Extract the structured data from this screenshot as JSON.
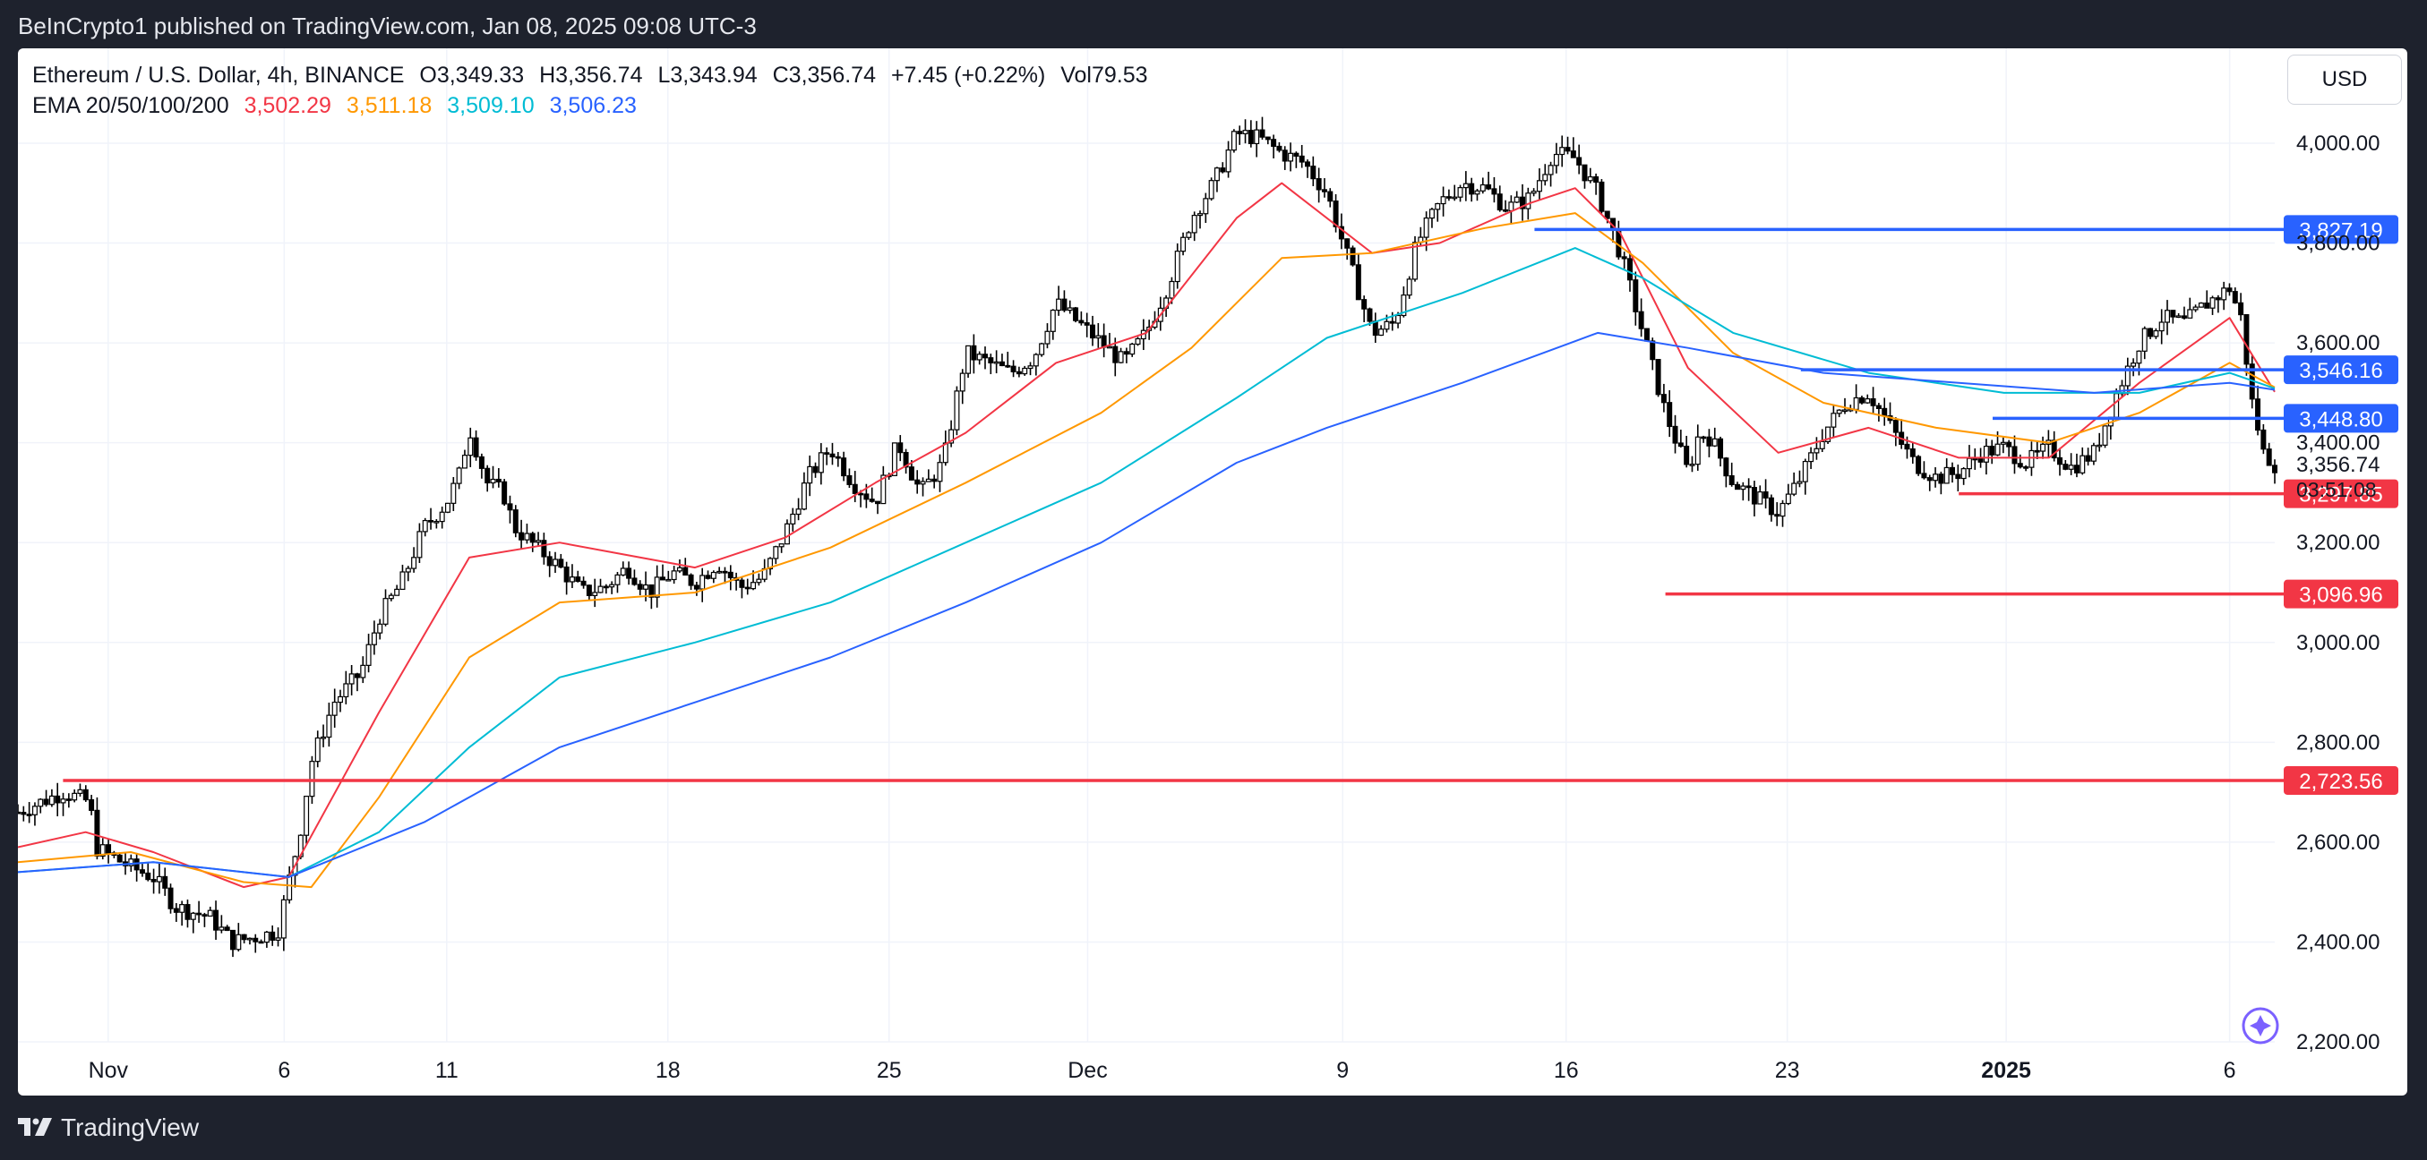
{
  "header": {
    "published_by": "BeInCrypto1 published on TradingView.com, Jan 08, 2025 09:08 UTC-3"
  },
  "legend": {
    "symbol": "Ethereum / U.S. Dollar, 4h, BINANCE",
    "open": "O3,349.33",
    "high": "H3,356.74",
    "low": "L3,343.94",
    "close": "C3,356.74",
    "change": "+7.45 (+0.22%)",
    "volume": "Vol79.53",
    "ema_label": "EMA 20/50/100/200",
    "ema_values": [
      {
        "value": "3,502.29",
        "color": "#f23645"
      },
      {
        "value": "3,511.18",
        "color": "#ff9800"
      },
      {
        "value": "3,509.10",
        "color": "#00bcd4"
      },
      {
        "value": "3,506.23",
        "color": "#2962ff"
      }
    ]
  },
  "currency_button": "USD",
  "footer": {
    "brand": "TradingView"
  },
  "chart_data": {
    "type": "candlestick",
    "symbol": "ETHUSD",
    "interval": "4h",
    "ylim": [
      2200,
      4190
    ],
    "y_ticks": [
      "2,200.00",
      "2,400.00",
      "2,600.00",
      "2,800.00",
      "3,000.00",
      "3,200.00",
      "3,400.00",
      "3,600.00",
      "3,800.00",
      "4,000.00"
    ],
    "x_ticks": [
      {
        "label": "Nov",
        "x": 0.04
      },
      {
        "label": "6",
        "x": 0.118
      },
      {
        "label": "11",
        "x": 0.19
      },
      {
        "label": "18",
        "x": 0.288
      },
      {
        "label": "25",
        "x": 0.386
      },
      {
        "label": "Dec",
        "x": 0.474
      },
      {
        "label": "9",
        "x": 0.587
      },
      {
        "label": "16",
        "x": 0.686
      },
      {
        "label": "23",
        "x": 0.784
      },
      {
        "label": "2025",
        "x": 0.881,
        "bold": true
      },
      {
        "label": "6",
        "x": 0.98
      }
    ],
    "price_path": [
      [
        0.0,
        2660
      ],
      [
        0.02,
        2700
      ],
      [
        0.032,
        2680
      ],
      [
        0.034,
        2590
      ],
      [
        0.05,
        2550
      ],
      [
        0.06,
        2530
      ],
      [
        0.07,
        2470
      ],
      [
        0.085,
        2450
      ],
      [
        0.095,
        2400
      ],
      [
        0.105,
        2410
      ],
      [
        0.115,
        2420
      ],
      [
        0.125,
        2620
      ],
      [
        0.13,
        2760
      ],
      [
        0.14,
        2880
      ],
      [
        0.152,
        2940
      ],
      [
        0.16,
        3050
      ],
      [
        0.17,
        3120
      ],
      [
        0.18,
        3230
      ],
      [
        0.19,
        3280
      ],
      [
        0.196,
        3340
      ],
      [
        0.2,
        3430
      ],
      [
        0.208,
        3320
      ],
      [
        0.215,
        3300
      ],
      [
        0.22,
        3230
      ],
      [
        0.23,
        3190
      ],
      [
        0.24,
        3150
      ],
      [
        0.25,
        3100
      ],
      [
        0.26,
        3110
      ],
      [
        0.27,
        3150
      ],
      [
        0.28,
        3100
      ],
      [
        0.29,
        3140
      ],
      [
        0.3,
        3120
      ],
      [
        0.31,
        3160
      ],
      [
        0.32,
        3110
      ],
      [
        0.33,
        3130
      ],
      [
        0.34,
        3220
      ],
      [
        0.35,
        3330
      ],
      [
        0.36,
        3390
      ],
      [
        0.37,
        3320
      ],
      [
        0.38,
        3280
      ],
      [
        0.39,
        3400
      ],
      [
        0.4,
        3300
      ],
      [
        0.41,
        3360
      ],
      [
        0.42,
        3580
      ],
      [
        0.43,
        3560
      ],
      [
        0.44,
        3540
      ],
      [
        0.45,
        3570
      ],
      [
        0.46,
        3680
      ],
      [
        0.47,
        3640
      ],
      [
        0.48,
        3600
      ],
      [
        0.49,
        3560
      ],
      [
        0.5,
        3620
      ],
      [
        0.51,
        3720
      ],
      [
        0.52,
        3850
      ],
      [
        0.53,
        3920
      ],
      [
        0.54,
        4020
      ],
      [
        0.55,
        4010
      ],
      [
        0.56,
        3980
      ],
      [
        0.57,
        3960
      ],
      [
        0.58,
        3900
      ],
      [
        0.59,
        3760
      ],
      [
        0.6,
        3620
      ],
      [
        0.61,
        3640
      ],
      [
        0.62,
        3800
      ],
      [
        0.63,
        3880
      ],
      [
        0.64,
        3920
      ],
      [
        0.65,
        3910
      ],
      [
        0.66,
        3870
      ],
      [
        0.67,
        3890
      ],
      [
        0.68,
        3980
      ],
      [
        0.69,
        3970
      ],
      [
        0.7,
        3900
      ],
      [
        0.71,
        3780
      ],
      [
        0.72,
        3620
      ],
      [
        0.73,
        3460
      ],
      [
        0.74,
        3340
      ],
      [
        0.745,
        3420
      ],
      [
        0.75,
        3410
      ],
      [
        0.76,
        3320
      ],
      [
        0.77,
        3290
      ],
      [
        0.78,
        3260
      ],
      [
        0.79,
        3330
      ],
      [
        0.8,
        3420
      ],
      [
        0.81,
        3480
      ],
      [
        0.82,
        3500
      ],
      [
        0.83,
        3430
      ],
      [
        0.84,
        3360
      ],
      [
        0.85,
        3330
      ],
      [
        0.86,
        3340
      ],
      [
        0.87,
        3380
      ],
      [
        0.88,
        3390
      ],
      [
        0.89,
        3360
      ],
      [
        0.9,
        3390
      ],
      [
        0.91,
        3350
      ],
      [
        0.92,
        3380
      ],
      [
        0.93,
        3500
      ],
      [
        0.94,
        3600
      ],
      [
        0.95,
        3650
      ],
      [
        0.96,
        3640
      ],
      [
        0.97,
        3680
      ],
      [
        0.98,
        3710
      ],
      [
        0.985,
        3650
      ],
      [
        0.99,
        3480
      ],
      [
        0.995,
        3380
      ],
      [
        1.0,
        3357
      ]
    ],
    "emas": [
      {
        "name": "EMA 20",
        "color": "#f23645",
        "value": 3502.29,
        "points": [
          [
            0,
            2590
          ],
          [
            0.03,
            2620
          ],
          [
            0.06,
            2580
          ],
          [
            0.1,
            2510
          ],
          [
            0.12,
            2530
          ],
          [
            0.16,
            2860
          ],
          [
            0.2,
            3170
          ],
          [
            0.24,
            3200
          ],
          [
            0.3,
            3150
          ],
          [
            0.34,
            3210
          ],
          [
            0.38,
            3320
          ],
          [
            0.42,
            3420
          ],
          [
            0.46,
            3560
          ],
          [
            0.5,
            3620
          ],
          [
            0.54,
            3850
          ],
          [
            0.56,
            3920
          ],
          [
            0.6,
            3780
          ],
          [
            0.63,
            3800
          ],
          [
            0.67,
            3880
          ],
          [
            0.69,
            3910
          ],
          [
            0.71,
            3820
          ],
          [
            0.74,
            3550
          ],
          [
            0.78,
            3380
          ],
          [
            0.82,
            3430
          ],
          [
            0.86,
            3370
          ],
          [
            0.9,
            3370
          ],
          [
            0.94,
            3520
          ],
          [
            0.98,
            3650
          ],
          [
            1.0,
            3502
          ]
        ]
      },
      {
        "name": "EMA 50",
        "color": "#ff9800",
        "value": 3511.18,
        "points": [
          [
            0,
            2560
          ],
          [
            0.05,
            2580
          ],
          [
            0.1,
            2520
          ],
          [
            0.13,
            2510
          ],
          [
            0.16,
            2690
          ],
          [
            0.2,
            2970
          ],
          [
            0.24,
            3080
          ],
          [
            0.3,
            3100
          ],
          [
            0.36,
            3190
          ],
          [
            0.42,
            3320
          ],
          [
            0.48,
            3460
          ],
          [
            0.52,
            3590
          ],
          [
            0.56,
            3770
          ],
          [
            0.6,
            3780
          ],
          [
            0.65,
            3830
          ],
          [
            0.69,
            3860
          ],
          [
            0.72,
            3760
          ],
          [
            0.76,
            3580
          ],
          [
            0.8,
            3480
          ],
          [
            0.85,
            3430
          ],
          [
            0.9,
            3400
          ],
          [
            0.94,
            3460
          ],
          [
            0.98,
            3560
          ],
          [
            1.0,
            3511
          ]
        ]
      },
      {
        "name": "EMA 100",
        "color": "#00bcd4",
        "value": 3509.1,
        "points": [
          [
            0,
            2540
          ],
          [
            0.06,
            2560
          ],
          [
            0.12,
            2530
          ],
          [
            0.16,
            2620
          ],
          [
            0.2,
            2790
          ],
          [
            0.24,
            2930
          ],
          [
            0.3,
            3000
          ],
          [
            0.36,
            3080
          ],
          [
            0.42,
            3200
          ],
          [
            0.48,
            3320
          ],
          [
            0.54,
            3490
          ],
          [
            0.58,
            3610
          ],
          [
            0.64,
            3700
          ],
          [
            0.69,
            3790
          ],
          [
            0.72,
            3730
          ],
          [
            0.76,
            3620
          ],
          [
            0.82,
            3540
          ],
          [
            0.88,
            3500
          ],
          [
            0.94,
            3500
          ],
          [
            0.98,
            3540
          ],
          [
            1.0,
            3509
          ]
        ]
      },
      {
        "name": "EMA 200",
        "color": "#2962ff",
        "value": 3506.23,
        "points": [
          [
            0,
            2540
          ],
          [
            0.06,
            2560
          ],
          [
            0.12,
            2530
          ],
          [
            0.18,
            2640
          ],
          [
            0.24,
            2790
          ],
          [
            0.3,
            2880
          ],
          [
            0.36,
            2970
          ],
          [
            0.42,
            3080
          ],
          [
            0.48,
            3200
          ],
          [
            0.54,
            3360
          ],
          [
            0.58,
            3430
          ],
          [
            0.64,
            3520
          ],
          [
            0.7,
            3620
          ],
          [
            0.74,
            3590
          ],
          [
            0.8,
            3540
          ],
          [
            0.86,
            3520
          ],
          [
            0.92,
            3500
          ],
          [
            0.98,
            3520
          ],
          [
            1.0,
            3506
          ]
        ]
      }
    ],
    "horizontal_levels": [
      {
        "price": 3827.19,
        "label": "3,827.19",
        "color": "#2962ff",
        "x_start": 0.672
      },
      {
        "price": 3546.16,
        "label": "3,546.16",
        "color": "#2962ff",
        "x_start": 0.79
      },
      {
        "price": 3448.8,
        "label": "3,448.80",
        "color": "#2962ff",
        "x_start": 0.875
      },
      {
        "price": 3297.85,
        "label": "3,297.85",
        "color": "#f23645",
        "x_start": 0.86
      },
      {
        "price": 3096.96,
        "label": "3,096.96",
        "color": "#f23645",
        "x_start": 0.73
      },
      {
        "price": 2723.56,
        "label": "2,723.56",
        "color": "#f23645",
        "x_start": 0.02
      }
    ],
    "last_price": {
      "label": "3,356.74",
      "countdown": "03:51:08"
    },
    "grid": true
  }
}
